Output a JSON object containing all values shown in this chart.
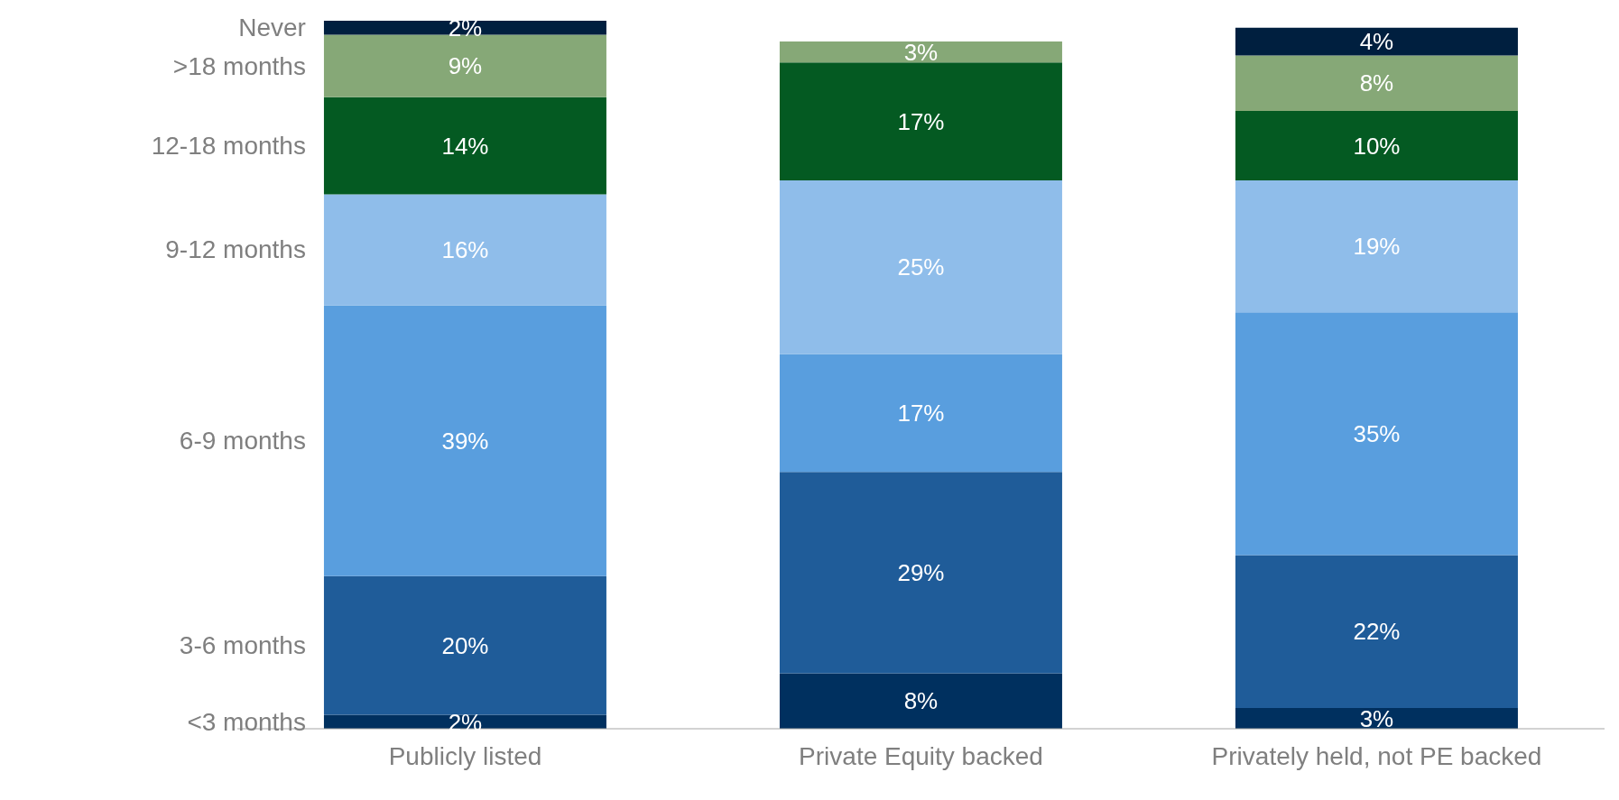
{
  "chart_data": {
    "type": "bar",
    "stacked": true,
    "categories": [
      "Publicly listed",
      "Private Equity backed",
      "Privately held, not PE backed"
    ],
    "series": [
      {
        "name": "<3 months",
        "color": "#00305f",
        "values": [
          2,
          8,
          3
        ],
        "value_labels": [
          "2%",
          "8%",
          "3%"
        ]
      },
      {
        "name": "3-6 months",
        "color": "#1f5c99",
        "values": [
          20,
          29,
          22
        ],
        "value_labels": [
          "20%",
          "29%",
          "22%"
        ]
      },
      {
        "name": "6-9 months",
        "color": "#599ede",
        "values": [
          39,
          17,
          35
        ],
        "value_labels": [
          "39%",
          "17%",
          "35%"
        ]
      },
      {
        "name": "9-12 months",
        "color": "#8fbdea",
        "values": [
          16,
          25,
          19
        ],
        "value_labels": [
          "16%",
          "25%",
          "19%"
        ]
      },
      {
        "name": "12-18 months",
        "color": "#045a22",
        "values": [
          14,
          17,
          10
        ],
        "value_labels": [
          "14%",
          "17%",
          "10%"
        ]
      },
      {
        "name": ">18 months",
        "color": "#86a877",
        "values": [
          9,
          3,
          8
        ],
        "value_labels": [
          "9%",
          "3%",
          "8%"
        ]
      },
      {
        "name": "Never",
        "color": "#001f3f",
        "values": [
          2,
          null,
          4
        ],
        "value_labels": [
          "2%",
          null,
          "4%"
        ]
      }
    ]
  }
}
